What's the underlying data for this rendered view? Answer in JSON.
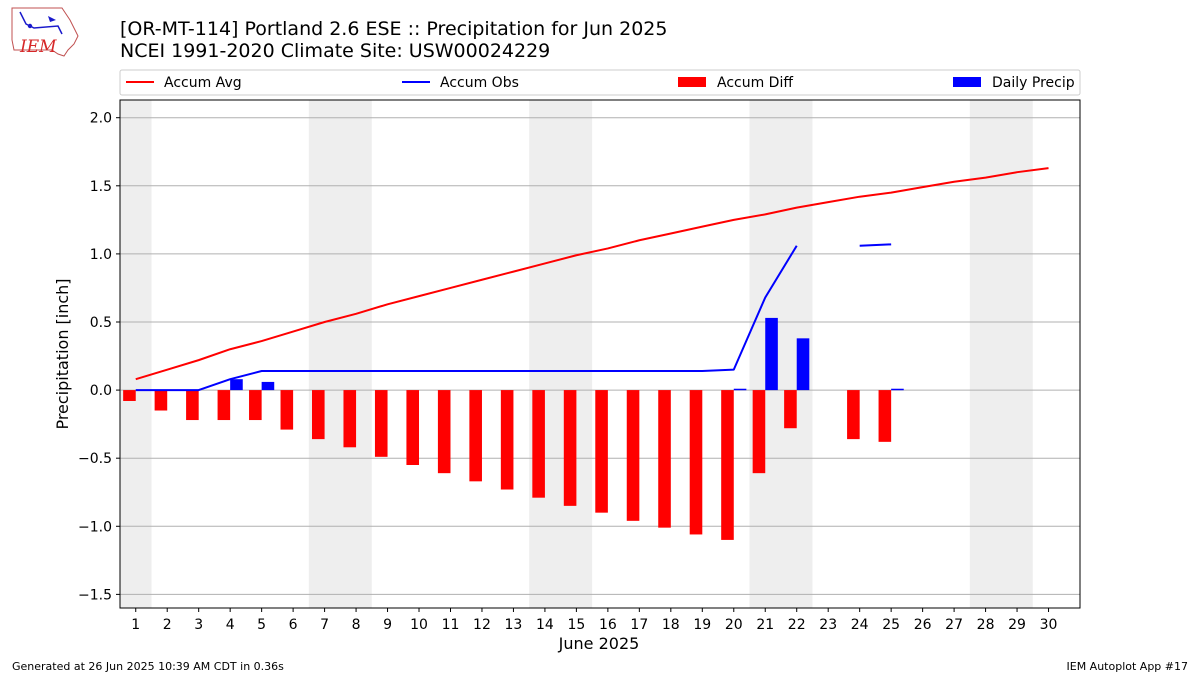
{
  "header": {
    "title_line1": "[OR-MT-114] Portland 2.6 ESE :: Precipitation for Jun 2025",
    "title_line2": "NCEI 1991-2020 Climate Site: USW00024229"
  },
  "logo": {
    "text": "IEM"
  },
  "footer": {
    "left": "Generated at 26 Jun 2025 10:39 AM CDT in 0.36s",
    "right": "IEM Autoplot App #17"
  },
  "chart_data": {
    "type": "bar",
    "xlabel": "June 2025",
    "ylabel": "Precipitation [inch]",
    "ylim": [
      -1.6,
      2.13
    ],
    "xlim": [
      0.5,
      31.0
    ],
    "yticks": [
      -1.5,
      -1.0,
      -0.5,
      0.0,
      0.5,
      1.0,
      1.5,
      2.0
    ],
    "ytick_labels": [
      "−1.5",
      "−1.0",
      "−0.5",
      "0.0",
      "0.5",
      "1.0",
      "1.5",
      "2.0"
    ],
    "xticks": [
      "1",
      "2",
      "3",
      "4",
      "5",
      "6",
      "7",
      "8",
      "9",
      "10",
      "11",
      "12",
      "13",
      "14",
      "15",
      "16",
      "17",
      "18",
      "19",
      "20",
      "21",
      "22",
      "23",
      "24",
      "25",
      "26",
      "27",
      "28",
      "29",
      "30"
    ],
    "grid": "horizontal",
    "weekend_shading": [
      [
        0.5,
        1.5
      ],
      [
        6.5,
        8.5
      ],
      [
        13.5,
        15.5
      ],
      [
        20.5,
        22.5
      ],
      [
        27.5,
        29.5
      ]
    ],
    "legend_position": "top",
    "colors": {
      "avg": "#ff0000",
      "obs": "#0000ff",
      "diff": "#ff0000",
      "daily": "#0000ff",
      "shade": "#eeeeee",
      "grid": "#b0b0b0"
    },
    "legend": [
      {
        "label": "Accum Avg",
        "kind": "line",
        "color": "#ff0000"
      },
      {
        "label": "Accum Obs",
        "kind": "line",
        "color": "#0000ff"
      },
      {
        "label": "Accum Diff",
        "kind": "bar",
        "color": "#ff0000"
      },
      {
        "label": "Daily Precip",
        "kind": "bar",
        "color": "#0000ff"
      }
    ],
    "series": [
      {
        "name": "Accum Avg",
        "kind": "line",
        "days": [
          1,
          2,
          3,
          4,
          5,
          6,
          7,
          8,
          9,
          10,
          11,
          12,
          13,
          14,
          15,
          16,
          17,
          18,
          19,
          20,
          21,
          22,
          23,
          24,
          25,
          26,
          27,
          28,
          29,
          30
        ],
        "values": [
          0.08,
          0.15,
          0.22,
          0.3,
          0.36,
          0.43,
          0.5,
          0.56,
          0.63,
          0.69,
          0.75,
          0.81,
          0.87,
          0.93,
          0.99,
          1.04,
          1.1,
          1.15,
          1.2,
          1.25,
          1.29,
          1.34,
          1.38,
          1.42,
          1.45,
          1.49,
          1.53,
          1.56,
          1.6,
          1.63
        ]
      },
      {
        "name": "Accum Obs",
        "kind": "line",
        "days": [
          1,
          2,
          3,
          4,
          5,
          6,
          7,
          8,
          9,
          10,
          11,
          12,
          13,
          14,
          15,
          16,
          17,
          18,
          19,
          20,
          21,
          22,
          23,
          24,
          25
        ],
        "values": [
          0.0,
          0.0,
          0.0,
          0.08,
          0.14,
          0.14,
          0.14,
          0.14,
          0.14,
          0.14,
          0.14,
          0.14,
          0.14,
          0.14,
          0.14,
          0.14,
          0.14,
          0.14,
          0.14,
          0.15,
          0.68,
          1.06,
          null,
          1.06,
          1.07
        ]
      },
      {
        "name": "Accum Diff",
        "kind": "bar",
        "days": [
          1,
          2,
          3,
          4,
          5,
          6,
          7,
          8,
          9,
          10,
          11,
          12,
          13,
          14,
          15,
          16,
          17,
          18,
          19,
          20,
          21,
          22,
          24,
          25
        ],
        "values": [
          -0.08,
          -0.15,
          -0.22,
          -0.22,
          -0.22,
          -0.29,
          -0.36,
          -0.42,
          -0.49,
          -0.55,
          -0.61,
          -0.67,
          -0.73,
          -0.79,
          -0.85,
          -0.9,
          -0.96,
          -1.01,
          -1.06,
          -1.1,
          -0.61,
          -0.28,
          -0.36,
          -0.38
        ]
      },
      {
        "name": "Daily Precip",
        "kind": "bar",
        "days": [
          4,
          5,
          20,
          21,
          22,
          25
        ],
        "values": [
          0.08,
          0.06,
          0.01,
          0.53,
          0.38,
          0.01
        ]
      }
    ]
  }
}
